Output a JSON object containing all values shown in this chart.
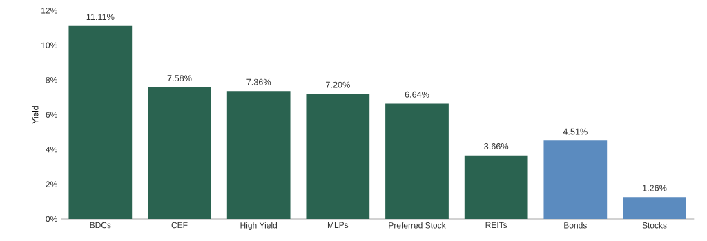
{
  "chart_data": {
    "type": "bar",
    "ylabel": "Yield",
    "categories": [
      "BDCs",
      "CEF",
      "High Yield",
      "MLPs",
      "Preferred Stock",
      "REITs",
      "Bonds",
      "Stocks"
    ],
    "values": [
      11.11,
      7.58,
      7.36,
      7.2,
      6.64,
      3.66,
      4.51,
      1.26
    ],
    "colors": [
      "#2a6350",
      "#2a6350",
      "#2a6350",
      "#2a6350",
      "#2a6350",
      "#2a6350",
      "#5b8bbf",
      "#5b8bbf"
    ],
    "value_labels": [
      "11.11%",
      "7.58%",
      "7.36%",
      "7.20%",
      "6.64%",
      "3.66%",
      "4.51%",
      "1.26%"
    ],
    "ylim": [
      0,
      12
    ],
    "yticks": [
      {
        "value": 0,
        "label": "0%"
      },
      {
        "value": 2,
        "label": "2%"
      },
      {
        "value": 4,
        "label": "4%"
      },
      {
        "value": 6,
        "label": "6%"
      },
      {
        "value": 8,
        "label": "8%"
      },
      {
        "value": 10,
        "label": "10%"
      },
      {
        "value": 12,
        "label": "12%"
      }
    ]
  }
}
